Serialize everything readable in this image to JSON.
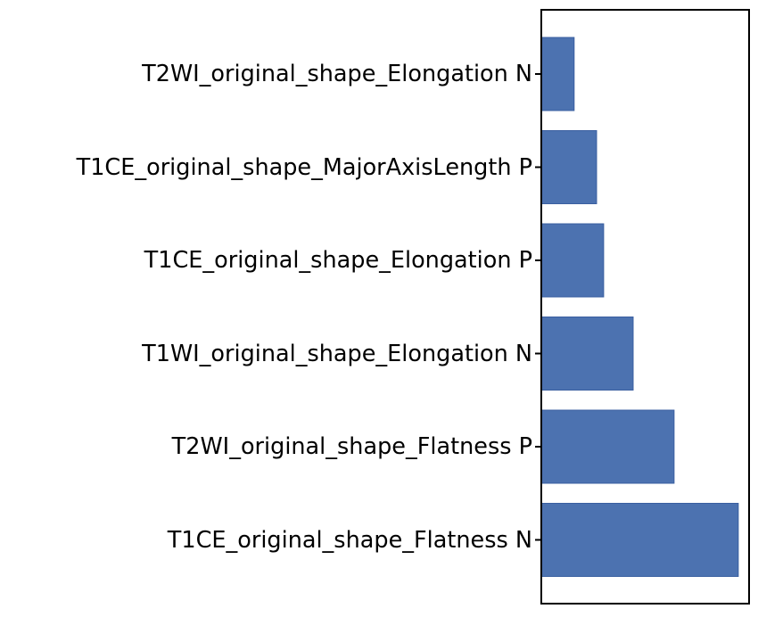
{
  "chart_data": {
    "type": "bar",
    "orientation": "horizontal",
    "title": "",
    "xlabel": "",
    "ylabel": "",
    "categories": [
      "T2WI_original_shape_Elongation N",
      "T1CE_original_shape_MajorAxisLength P",
      "T1CE_original_shape_Elongation P",
      "T1WI_original_shape_Elongation N",
      "T2WI_original_shape_Flatness P",
      "T1CE_original_shape_Flatness N"
    ],
    "values": [
      0.158,
      0.266,
      0.3,
      0.442,
      0.639,
      0.948
    ],
    "value_note": "relative bar lengths (fraction of axis width); x-axis has no ticks or labels",
    "xlim": [
      0,
      1
    ],
    "grid": false,
    "legend": null,
    "bar_color": "#4c72b0",
    "bar_edge_color": "#3a5fa0"
  }
}
